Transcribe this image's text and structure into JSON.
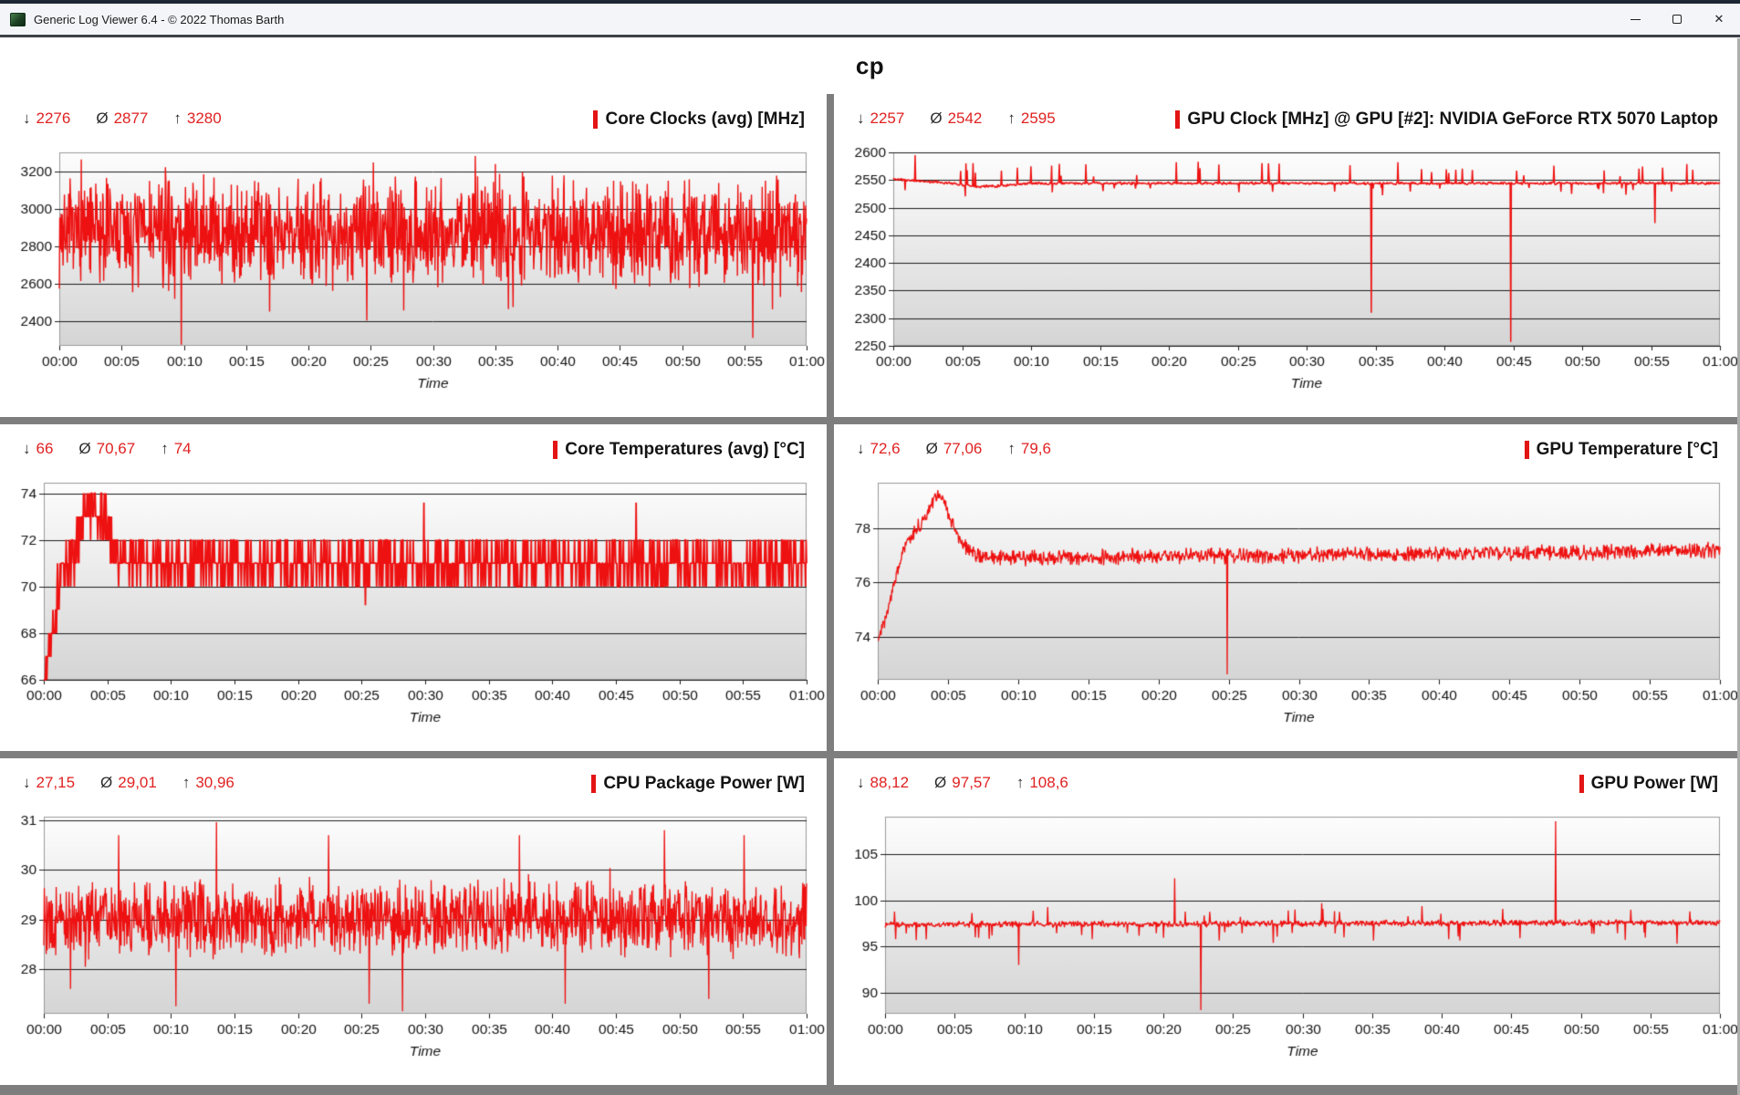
{
  "window": {
    "title": "Generic Log Viewer 6.4 - © 2022 Thomas Barth",
    "icons": {
      "minimize_glyph": "—",
      "maximize_glyph": "□",
      "close_glyph": "✕"
    }
  },
  "header": {
    "title": "cp"
  },
  "stats_symbols": {
    "min": "↓",
    "avg": "Ø",
    "max": "↑"
  },
  "colors": {
    "accent_red": "#e31414",
    "line_red": "#ee1111",
    "stats_red": "#e02222",
    "grid_line": "#1c1c1c",
    "plot_border": "#9a9a9a",
    "plot_bg_top": "#fdfdfd",
    "plot_bg_bottom": "#d5d5d5",
    "tick_text": "#111111",
    "divider_gray": "#7e7e7e"
  },
  "time_axis": {
    "ticks": [
      "00:00",
      "00:05",
      "00:10",
      "00:15",
      "00:20",
      "00:25",
      "00:30",
      "00:35",
      "00:40",
      "00:45",
      "00:50",
      "00:55",
      "01:00"
    ],
    "range_minutes": [
      0,
      60
    ]
  },
  "chart_data": [
    {
      "name": "core-clocks",
      "type": "line",
      "title": "Core Clocks (avg) [MHz]",
      "stats": {
        "min": "2276",
        "avg": "2877",
        "max": "3280"
      },
      "xlabel": "Time",
      "yticks": [
        2400,
        2600,
        2800,
        3000,
        3200
      ],
      "ylim": [
        2270,
        3300
      ],
      "clip": [
        2276,
        3280
      ],
      "trend": [
        [
          0,
          2880
        ],
        [
          60,
          2880
        ]
      ],
      "noise_amp": 330,
      "wild": 0.07,
      "events": [
        [
          9.8,
          2276
        ],
        [
          16.9,
          2452
        ],
        [
          24.7,
          2405
        ],
        [
          33.4,
          3280
        ],
        [
          55.7,
          2312
        ]
      ]
    },
    {
      "name": "gpu-clock",
      "type": "line",
      "title": "GPU Clock [MHz] @ GPU [#2]: NVIDIA GeForce RTX 5070 Laptop",
      "stats": {
        "min": "2257",
        "avg": "2542",
        "max": "2595"
      },
      "xlabel": "Time",
      "yticks": [
        2250,
        2300,
        2350,
        2400,
        2450,
        2500,
        2550,
        2600
      ],
      "ylim": [
        2250,
        2600
      ],
      "clip": [
        2257,
        2595
      ],
      "trend": [
        [
          0,
          2552
        ],
        [
          2,
          2548
        ],
        [
          4,
          2545
        ],
        [
          6,
          2538
        ],
        [
          8,
          2540
        ],
        [
          10,
          2544
        ],
        [
          60,
          2544
        ]
      ],
      "noise_amp": 3,
      "up_spikes": {
        "rate": 0.04,
        "lo": 2556,
        "hi": 2584
      },
      "down_spikes": {
        "rate": 0.018,
        "lo": 2520,
        "hi": 2536
      },
      "events": [
        [
          1.6,
          2595
        ],
        [
          34.7,
          2310
        ],
        [
          44.8,
          2257
        ],
        [
          55.3,
          2472
        ]
      ]
    },
    {
      "name": "core-temperatures",
      "type": "line",
      "title": "Core Temperatures (avg) [°C]",
      "stats": {
        "min": "66",
        "avg": "70,67",
        "max": "74"
      },
      "xlabel": "Time",
      "yticks": [
        66,
        68,
        70,
        72,
        74
      ],
      "ylim": [
        66,
        74.45
      ],
      "clip": [
        66,
        74
      ],
      "trend": [
        [
          0,
          66
        ],
        [
          0.4,
          67.5
        ],
        [
          1,
          69.5
        ],
        [
          1.6,
          70.8
        ],
        [
          2.2,
          71.3
        ],
        [
          2.8,
          72
        ],
        [
          3.4,
          73.2
        ],
        [
          3.9,
          73.6
        ],
        [
          4.5,
          73.2
        ],
        [
          5,
          72.3
        ],
        [
          5.8,
          71.3
        ],
        [
          7,
          71
        ],
        [
          60,
          71
        ]
      ],
      "noise_amp": 1.4,
      "quantize": 1,
      "post_band": {
        "from": 6.2,
        "lo": 70,
        "hi": 72
      },
      "events": [
        [
          25.3,
          69.2
        ],
        [
          29.9,
          73.6
        ],
        [
          46.6,
          73.6
        ]
      ]
    },
    {
      "name": "gpu-temperature",
      "type": "line",
      "title": "GPU Temperature [°C]",
      "stats": {
        "min": "72,6",
        "avg": "77,06",
        "max": "79,6"
      },
      "xlabel": "Time",
      "yticks": [
        74,
        76,
        78
      ],
      "ylim": [
        72.4,
        79.7
      ],
      "clip": [
        72.6,
        79.6
      ],
      "trend": [
        [
          0,
          73.9
        ],
        [
          0.6,
          74.8
        ],
        [
          1.2,
          76
        ],
        [
          1.8,
          77.2
        ],
        [
          2.4,
          77.8
        ],
        [
          3,
          78.1
        ],
        [
          3.6,
          78.7
        ],
        [
          4.1,
          79.2
        ],
        [
          4.4,
          79.3
        ],
        [
          4.8,
          78.9
        ],
        [
          5.3,
          78.2
        ],
        [
          5.9,
          77.5
        ],
        [
          6.5,
          77.1
        ],
        [
          8,
          76.9
        ],
        [
          12,
          76.9
        ],
        [
          20,
          77
        ],
        [
          30,
          77
        ],
        [
          45,
          77.1
        ],
        [
          60,
          77.2
        ]
      ],
      "noise_amp": 0.35,
      "events": [
        [
          24.9,
          72.6
        ]
      ]
    },
    {
      "name": "cpu-package-power",
      "type": "line",
      "title": "CPU Package Power [W]",
      "stats": {
        "min": "27,15",
        "avg": "29,01",
        "max": "30,96"
      },
      "xlabel": "Time",
      "yticks": [
        28,
        29,
        30,
        31
      ],
      "ylim": [
        27.1,
        31.07
      ],
      "clip": [
        27.15,
        30.96
      ],
      "trend": [
        [
          0,
          29
        ],
        [
          60,
          29
        ]
      ],
      "noise_amp": 0.85,
      "wild": 0.05,
      "events": [
        [
          2.1,
          27.6
        ],
        [
          5.9,
          30.7
        ],
        [
          10.4,
          27.25
        ],
        [
          13.6,
          30.96
        ],
        [
          22.4,
          30.7
        ],
        [
          25.6,
          27.3
        ],
        [
          28.2,
          27.15
        ],
        [
          37.4,
          30.7
        ],
        [
          41.0,
          27.3
        ],
        [
          48.8,
          30.8
        ],
        [
          52.3,
          27.4
        ],
        [
          55.1,
          30.7
        ]
      ]
    },
    {
      "name": "gpu-power",
      "type": "line",
      "title": "GPU Power [W]",
      "stats": {
        "min": "88,12",
        "avg": "97,57",
        "max": "108,6"
      },
      "xlabel": "Time",
      "yticks": [
        90,
        95,
        100,
        105
      ],
      "ylim": [
        87.7,
        109.1
      ],
      "clip": [
        88.1,
        108.6
      ],
      "trend": [
        [
          0,
          97.4
        ],
        [
          60,
          97.6
        ]
      ],
      "noise_amp": 0.4,
      "up_spikes": {
        "rate": 0.01,
        "lo": 98.2,
        "hi": 99.2
      },
      "down_spikes": {
        "rate": 0.015,
        "lo": 95.6,
        "hi": 96.6
      },
      "events": [
        [
          7.7,
          96.2
        ],
        [
          9.6,
          93.0
        ],
        [
          11.7,
          99.3
        ],
        [
          14.9,
          95.8
        ],
        [
          20.8,
          102.4
        ],
        [
          22.7,
          88.1
        ],
        [
          27.9,
          95.4
        ],
        [
          31.4,
          99.7
        ],
        [
          33.0,
          96.0
        ],
        [
          38.6,
          99.4
        ],
        [
          41.2,
          96.1
        ],
        [
          44.4,
          99.1
        ],
        [
          48.2,
          108.6
        ],
        [
          50.8,
          96.4
        ],
        [
          53.6,
          99.0
        ],
        [
          56.9,
          95.3
        ]
      ]
    }
  ]
}
